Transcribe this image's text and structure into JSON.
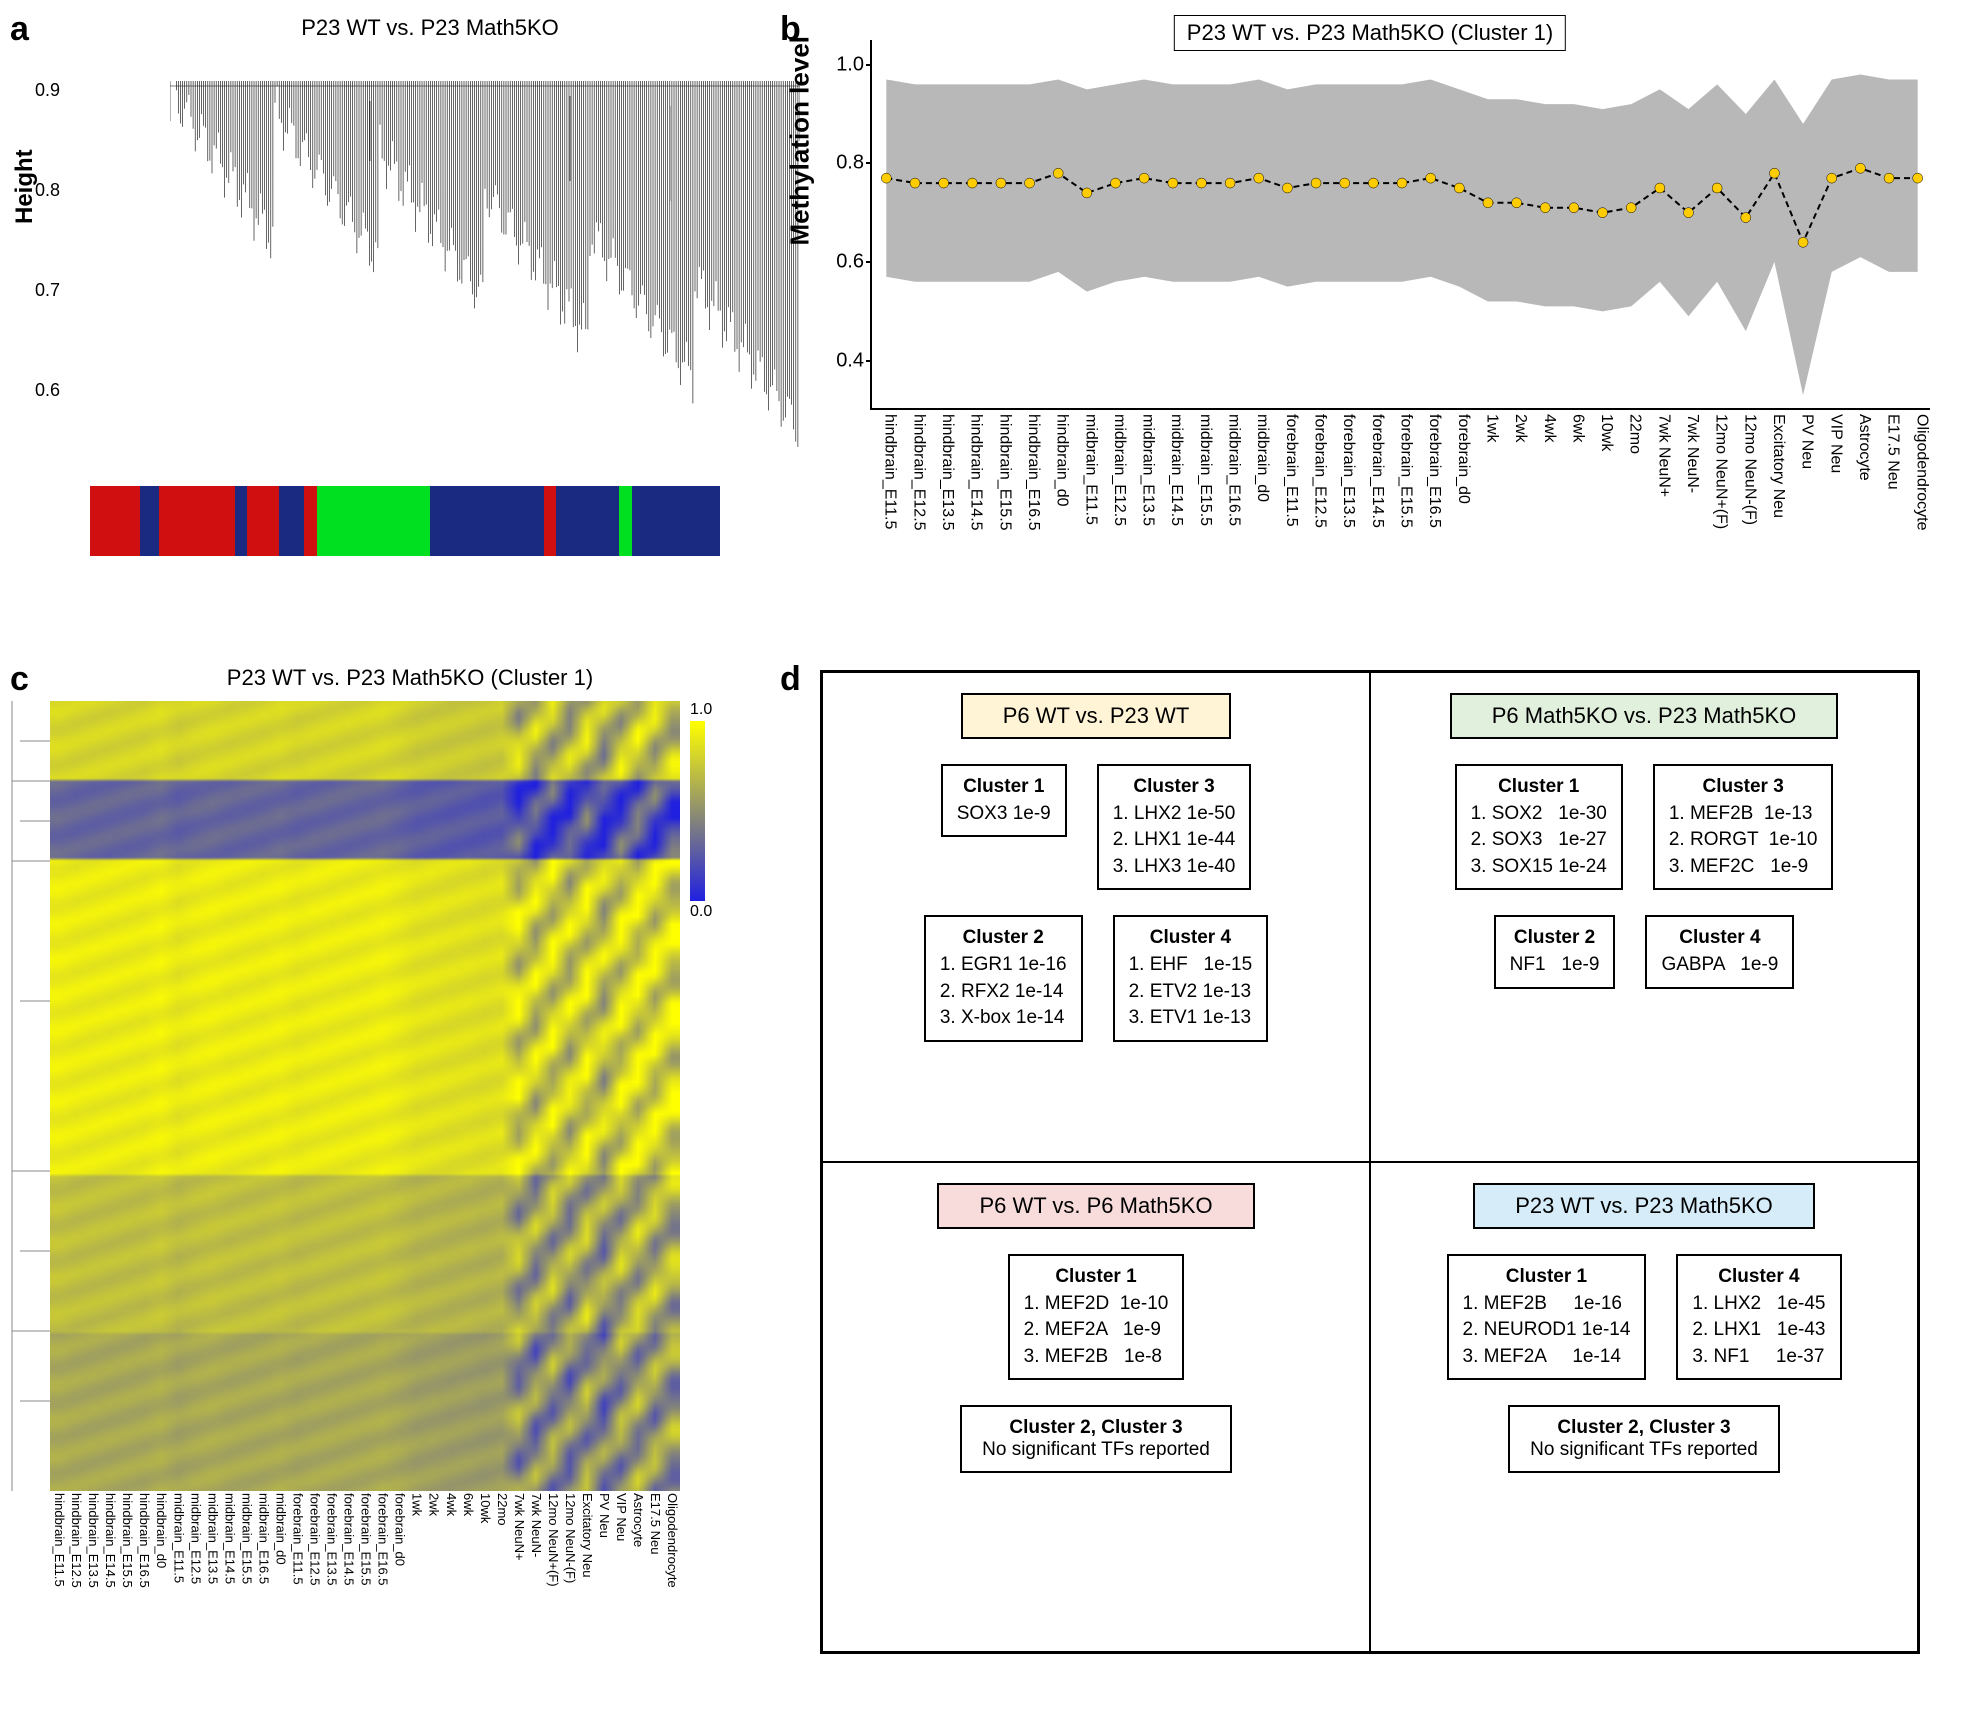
{
  "panel_a": {
    "label": "a",
    "title": "P23 WT vs. P23 Math5KO",
    "ylabel": "Height",
    "ylim": [
      0.55,
      0.95
    ],
    "yticks": [
      0.6,
      0.7,
      0.8,
      0.9
    ],
    "cluster_bar_segments": [
      {
        "color": "#d01010",
        "width_pct": 8
      },
      {
        "color": "#1a2a80",
        "width_pct": 3
      },
      {
        "color": "#d01010",
        "width_pct": 12
      },
      {
        "color": "#1a2a80",
        "width_pct": 2
      },
      {
        "color": "#d01010",
        "width_pct": 5
      },
      {
        "color": "#1a2a80",
        "width_pct": 4
      },
      {
        "color": "#d01010",
        "width_pct": 2
      },
      {
        "color": "#00e020",
        "width_pct": 18
      },
      {
        "color": "#1a2a80",
        "width_pct": 18
      },
      {
        "color": "#d01010",
        "width_pct": 2
      },
      {
        "color": "#1a2a80",
        "width_pct": 10
      },
      {
        "color": "#00e020",
        "width_pct": 2
      },
      {
        "color": "#1a2a80",
        "width_pct": 14
      }
    ],
    "dendro_color": "#000000"
  },
  "panel_b": {
    "label": "b",
    "title": "P23 WT vs. P23 Math5KO (Cluster 1)",
    "ylabel": "Methylation level",
    "ylim": [
      0.3,
      1.05
    ],
    "yticks": [
      0.4,
      0.6,
      0.8,
      1.0
    ],
    "xlabels": [
      "hindbrain_E11.5",
      "hindbrain_E12.5",
      "hindbrain_E13.5",
      "hindbrain_E14.5",
      "hindbrain_E15.5",
      "hindbrain_E16.5",
      "hindbrain_d0",
      "midbrain_E11.5",
      "midbrain_E12.5",
      "midbrain_E13.5",
      "midbrain_E14.5",
      "midbrain_E15.5",
      "midbrain_E16.5",
      "midbrain_d0",
      "forebrain_E11.5",
      "forebrain_E12.5",
      "forebrain_E13.5",
      "forebrain_E14.5",
      "forebrain_E15.5",
      "forebrain_E16.5",
      "forebrain_d0",
      "1wk",
      "2wk",
      "4wk",
      "6wk",
      "10wk",
      "22mo",
      "7wk NeuN+",
      "7wk NeuN-",
      "12mo NeuN+(F)",
      "12mo NeuN-(F)",
      "Excitatory Neu",
      "PV Neu",
      "VIP Neu",
      "Astrocyte",
      "E17.5 Neu",
      "Oligodendrocyte"
    ],
    "mean_values": [
      0.77,
      0.76,
      0.76,
      0.76,
      0.76,
      0.76,
      0.78,
      0.74,
      0.76,
      0.77,
      0.76,
      0.76,
      0.76,
      0.77,
      0.75,
      0.76,
      0.76,
      0.76,
      0.76,
      0.77,
      0.75,
      0.72,
      0.72,
      0.71,
      0.71,
      0.7,
      0.71,
      0.75,
      0.7,
      0.75,
      0.69,
      0.78,
      0.64,
      0.77,
      0.79,
      0.77,
      0.77
    ],
    "upper_values": [
      0.97,
      0.96,
      0.96,
      0.96,
      0.96,
      0.96,
      0.97,
      0.95,
      0.96,
      0.97,
      0.96,
      0.96,
      0.96,
      0.97,
      0.95,
      0.96,
      0.96,
      0.96,
      0.96,
      0.97,
      0.95,
      0.93,
      0.93,
      0.92,
      0.92,
      0.91,
      0.92,
      0.95,
      0.91,
      0.96,
      0.9,
      0.97,
      0.88,
      0.97,
      0.98,
      0.97,
      0.97
    ],
    "lower_values": [
      0.57,
      0.56,
      0.56,
      0.56,
      0.56,
      0.56,
      0.58,
      0.54,
      0.56,
      0.57,
      0.56,
      0.56,
      0.56,
      0.57,
      0.55,
      0.56,
      0.56,
      0.56,
      0.56,
      0.57,
      0.55,
      0.52,
      0.52,
      0.51,
      0.51,
      0.5,
      0.51,
      0.56,
      0.49,
      0.56,
      0.46,
      0.6,
      0.33,
      0.58,
      0.61,
      0.58,
      0.58
    ],
    "band_color": "#b8b8b8",
    "line_color": "#000000",
    "marker_color": "#ffcc00",
    "marker_size": 5
  },
  "panel_c": {
    "label": "c",
    "title": "P23 WT vs. P23 Math5KO (Cluster 1)",
    "colorbar_max": "1.0",
    "colorbar_min": "0.0",
    "heatmap_high": "#ffff00",
    "heatmap_low": "#2020e0",
    "xlabels": [
      "hindbrain_E11.5",
      "hindbrain_E12.5",
      "hindbrain_E13.5",
      "hindbrain_E14.5",
      "hindbrain_E15.5",
      "hindbrain_E16.5",
      "hindbrain_d0",
      "midbrain_E11.5",
      "midbrain_E12.5",
      "midbrain_E13.5",
      "midbrain_E14.5",
      "midbrain_E15.5",
      "midbrain_E16.5",
      "midbrain_d0",
      "forebrain_E11.5",
      "forebrain_E12.5",
      "forebrain_E13.5",
      "forebrain_E14.5",
      "forebrain_E15.5",
      "forebrain_E16.5",
      "forebrain_d0",
      "1wk",
      "2wk",
      "4wk",
      "6wk",
      "10wk",
      "22mo",
      "7wk NeuN+",
      "7wk NeuN-",
      "12mo NeuN+(F)",
      "12mo NeuN-(F)",
      "Excitatory Neu",
      "PV Neu",
      "VIP Neu",
      "Astrocyte",
      "E17.5 Neu",
      "Oligodendrocyte"
    ]
  },
  "panel_d": {
    "label": "d",
    "quadrants": [
      {
        "title": "P6 WT vs. P23 WT",
        "title_bg": "#fff4d6",
        "clusters": [
          {
            "name": "Cluster 1",
            "items": [
              "SOX3 1e-9"
            ]
          },
          {
            "name": "Cluster 3",
            "items": [
              "1. LHX2 1e-50",
              "2. LHX1 1e-44",
              "3. LHX3 1e-40"
            ]
          },
          {
            "name": "Cluster 2",
            "items": [
              "1. EGR1 1e-16",
              "2. RFX2 1e-14",
              "3. X-box 1e-14"
            ]
          },
          {
            "name": "Cluster 4",
            "items": [
              "1. EHF   1e-15",
              "2. ETV2 1e-13",
              "3. ETV1 1e-13"
            ]
          }
        ]
      },
      {
        "title": "P6 Math5KO vs. P23 Math5KO",
        "title_bg": "#e0f0dc",
        "clusters": [
          {
            "name": "Cluster 1",
            "items": [
              "1. SOX2   1e-30",
              "2. SOX3   1e-27",
              "3. SOX15 1e-24"
            ]
          },
          {
            "name": "Cluster 3",
            "items": [
              "1. MEF2B  1e-13",
              "2. RORGT  1e-10",
              "3. MEF2C   1e-9"
            ]
          },
          {
            "name": "Cluster 2",
            "items": [
              "NF1   1e-9"
            ]
          },
          {
            "name": "Cluster 4",
            "items": [
              "GABPA   1e-9"
            ]
          }
        ]
      },
      {
        "title": "P6 WT vs. P6 Math5KO",
        "title_bg": "#f8dcdc",
        "clusters": [
          {
            "name": "Cluster 1",
            "items": [
              "1. MEF2D  1e-10",
              "2. MEF2A   1e-9",
              "3. MEF2B   1e-8"
            ]
          }
        ],
        "nosig": {
          "name": "Cluster 2, Cluster 3",
          "text": "No significant TFs reported"
        }
      },
      {
        "title": "P23 WT vs. P23 Math5KO",
        "title_bg": "#d6ecf8",
        "clusters": [
          {
            "name": "Cluster 1",
            "items": [
              "1. MEF2B     1e-16",
              "2. NEUROD1 1e-14",
              "3. MEF2A     1e-14"
            ]
          },
          {
            "name": "Cluster 4",
            "items": [
              "1. LHX2   1e-45",
              "2. LHX1   1e-43",
              "3. NF1     1e-37"
            ]
          }
        ],
        "nosig": {
          "name": "Cluster 2, Cluster 3",
          "text": "No significant TFs reported"
        }
      }
    ]
  }
}
